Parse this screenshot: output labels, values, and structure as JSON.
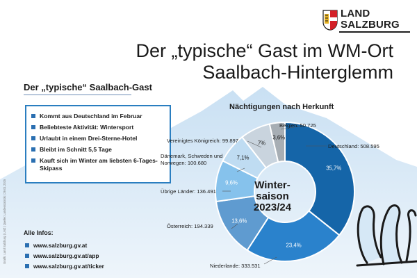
{
  "logo": {
    "line1": "LAND",
    "line2": "SALZBURG"
  },
  "title": {
    "line1": "Der „typische“ Gast im WM-Ort",
    "line2": "Saalbach-Hinterglemm"
  },
  "profile": {
    "heading": "Der „typische“ Saalbach-Gast",
    "facts": [
      "Kommt aus Deutschland im Februar",
      "Beliebteste Aktivität: Wintersport",
      "Urlaubt in einem Drei-Sterne-Hotel",
      "Bleibt im Schnitt 5,5 Tage",
      "Kauft sich im Winter am liebsten 6-Tages-Skipass"
    ]
  },
  "infos": {
    "heading": "Alle Infos:",
    "links": [
      "www.salzburg.gv.at",
      "www.salzburg.gv.at/app",
      "www.salzburg.gv.at/ticker"
    ]
  },
  "credit": "Grafik: Land Salzburg | LMZ | Quelle: Landesstatistik | 29.01.2025",
  "colors": {
    "accent": "#2a7ec0",
    "mountain": "#d6e8f6",
    "logo_red": "#d32027"
  },
  "chart_data": {
    "type": "pie",
    "donut": true,
    "title": "Nächtigungen nach Herkunft",
    "center_label_line1": "Winter-",
    "center_label_line2": "saison",
    "center_label_line3": "2023/24",
    "slices": [
      {
        "label": "Deutschland: 508.595",
        "name": "Deutschland",
        "value": 508595,
        "percent_label": "35,7%",
        "color": "#1565a8"
      },
      {
        "label": "Niederlande: 333.531",
        "name": "Niederlande",
        "value": 333531,
        "percent_label": "23,4%",
        "color": "#2a82cc"
      },
      {
        "label": "Österreich: 194.339",
        "name": "Österreich",
        "value": 194339,
        "percent_label": "13,6%",
        "color": "#5f9bd0"
      },
      {
        "label": "Übrige Länder: 136.491",
        "name": "Übrige Länder",
        "value": 136491,
        "percent_label": "9,6%",
        "color": "#86c2ec"
      },
      {
        "label": "Dänemark, Schweden und Norwegen: 100.680",
        "name": "Dänemark, Schweden und Norwegen",
        "value": 100680,
        "percent_label": "7,1%",
        "color": "#bfdcf2"
      },
      {
        "label": "Vereinigtes Königreich: 99.897",
        "name": "Vereinigtes Königreich",
        "value": 99897,
        "percent_label": "7%",
        "color": "#c9d4de"
      },
      {
        "label": "Belgien: 50.725",
        "name": "Belgien",
        "value": 50725,
        "percent_label": "3,6%",
        "color": "#a7aeb4"
      }
    ]
  }
}
